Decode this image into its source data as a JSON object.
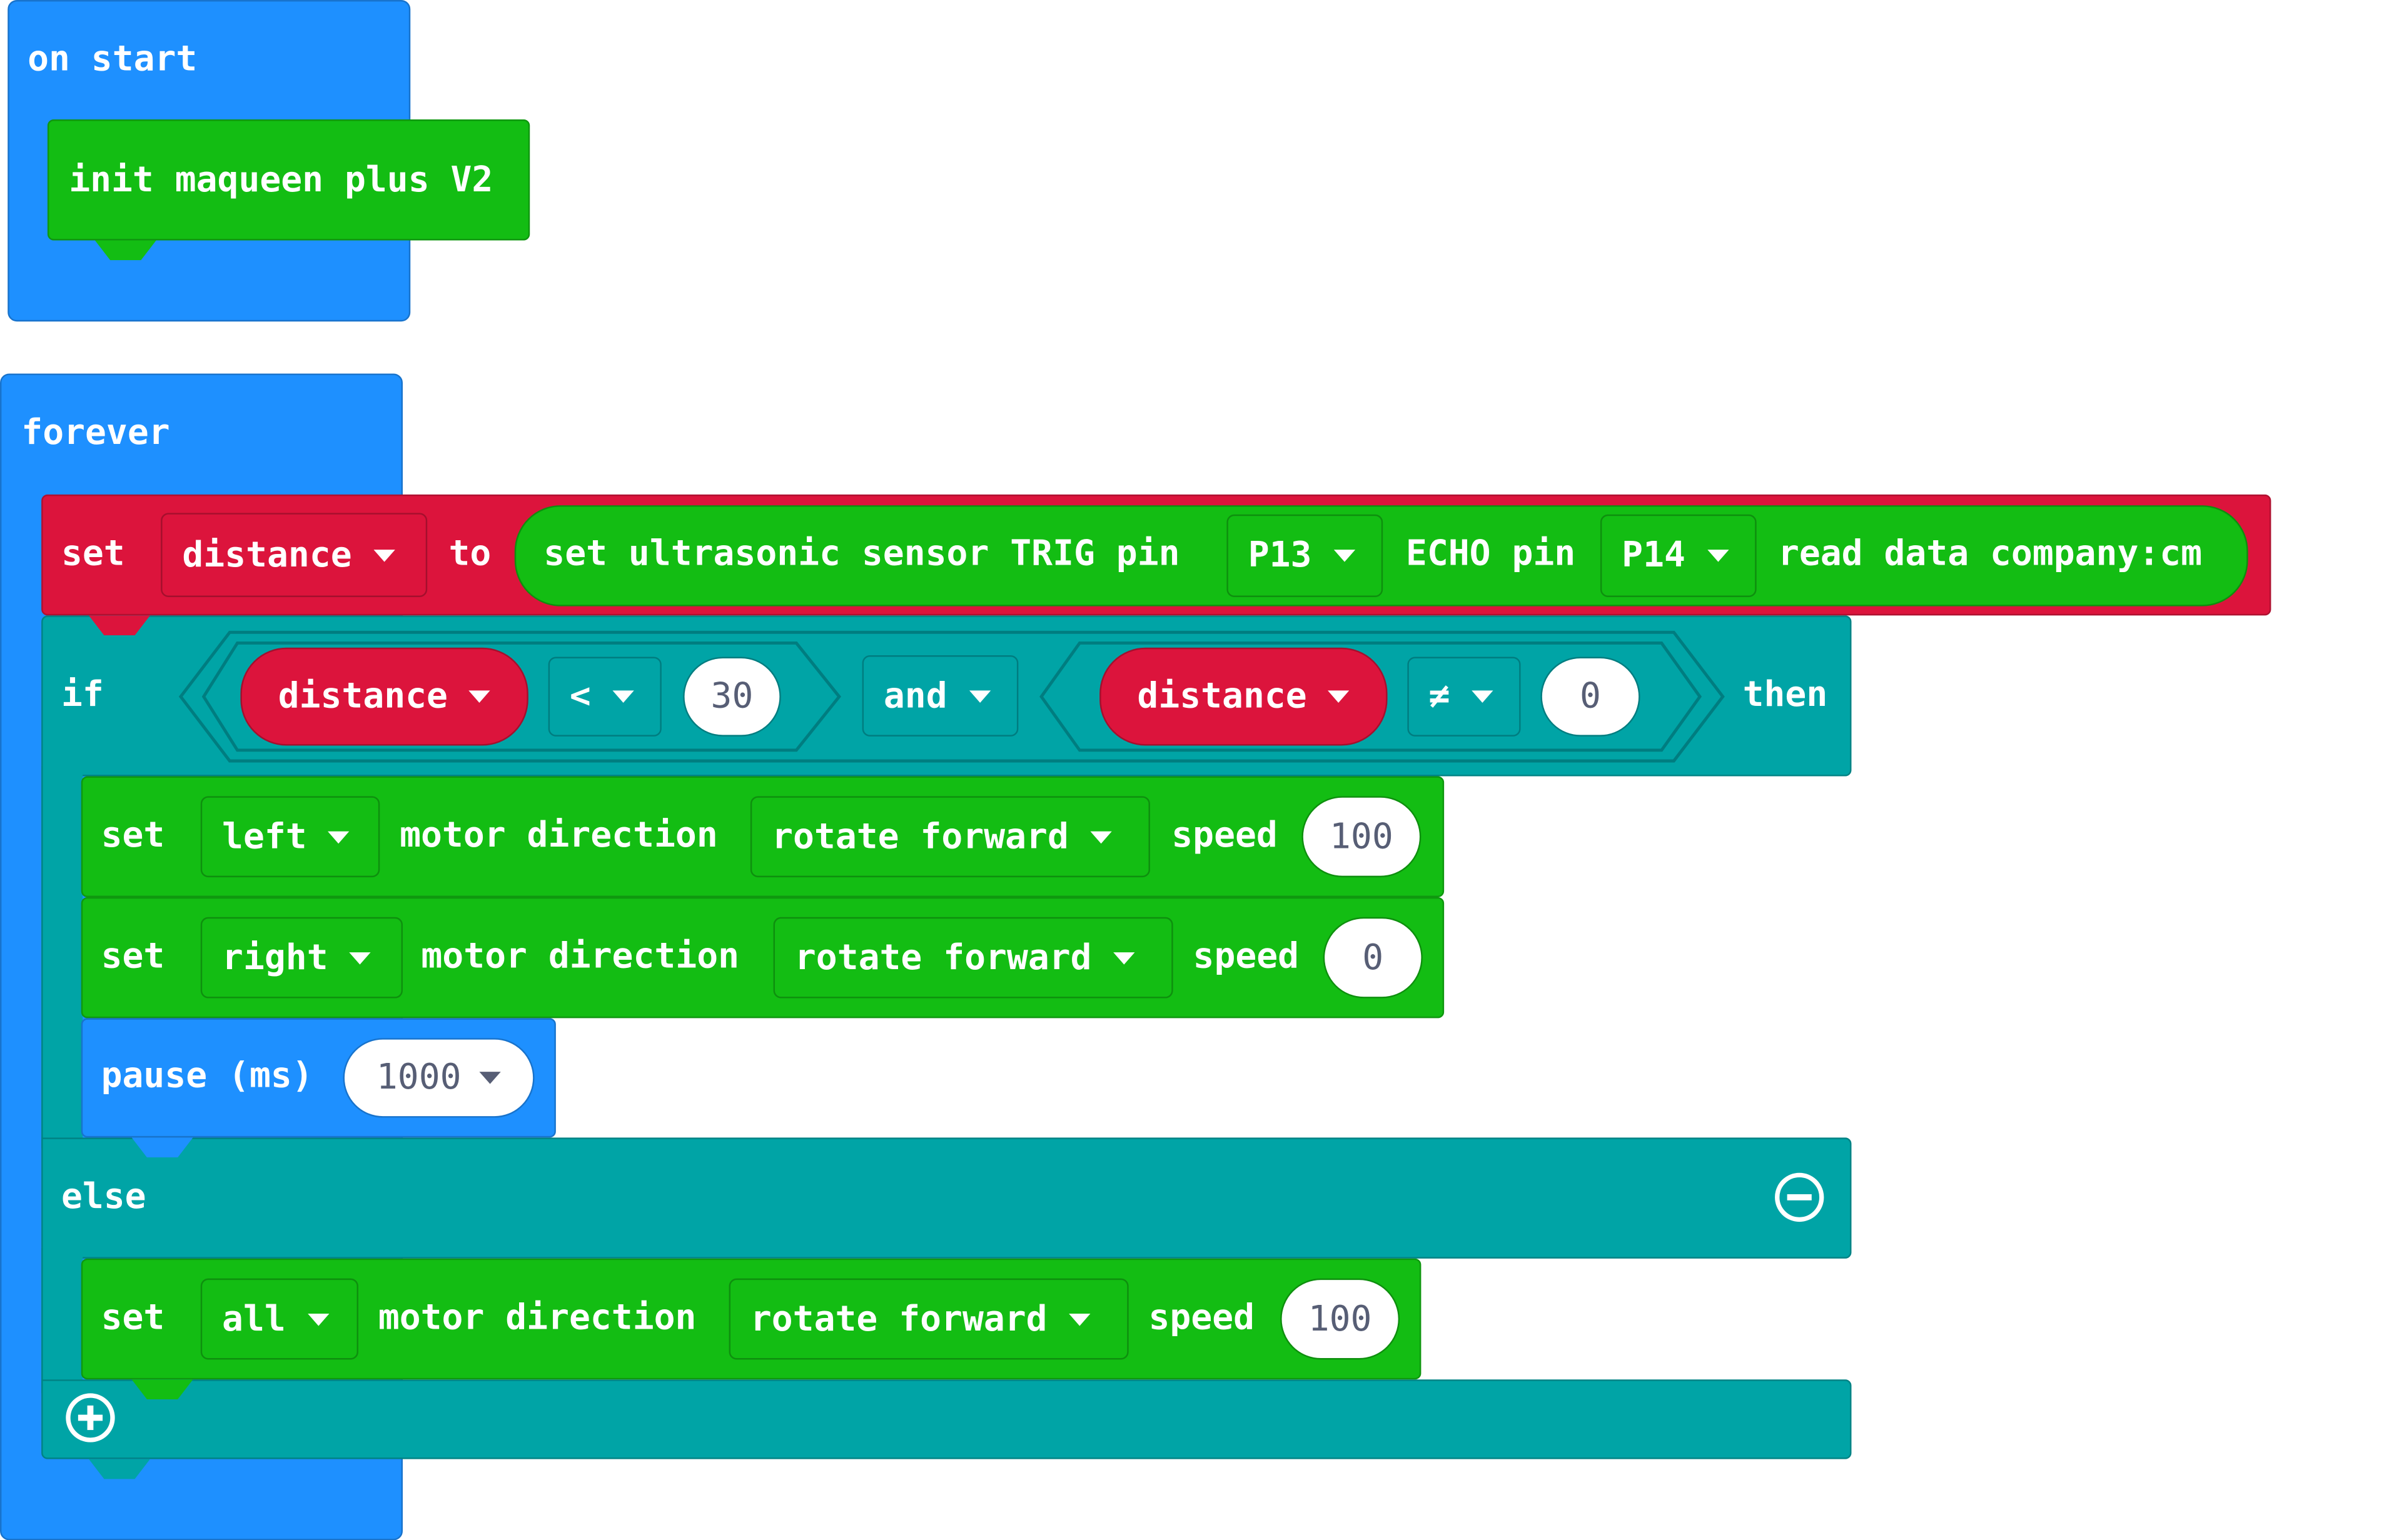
{
  "colors": {
    "events": "#1e90ff",
    "variables": "#dc143c",
    "maqueen": "#13bd13",
    "logic": "#00a4a6"
  },
  "on_start": {
    "label": "on start",
    "init_block": "init maqueen plus V2"
  },
  "forever": {
    "label": "forever",
    "set_var": {
      "set": "set",
      "variable": "distance",
      "to": "to",
      "sensor": {
        "prefix": "set ultrasonic sensor TRIG pin",
        "trig": "P13",
        "echo_label": "ECHO pin",
        "echo": "P14",
        "suffix": "read data company:cm"
      }
    },
    "if_block": {
      "if": "if",
      "then": "then",
      "else": "else",
      "cond_left": {
        "variable": "distance",
        "op": "<",
        "value": "30"
      },
      "logic_op": "and",
      "cond_right": {
        "variable": "distance",
        "op": "≠",
        "value": "0"
      },
      "then_blocks": [
        {
          "set": "set",
          "motor": "left",
          "label": "motor direction",
          "direction": "rotate forward",
          "speed_label": "speed",
          "speed": "100"
        },
        {
          "set": "set",
          "motor": "right",
          "label": "motor direction",
          "direction": "rotate forward",
          "speed_label": "speed",
          "speed": "0"
        }
      ],
      "pause": {
        "label": "pause (ms)",
        "value": "1000"
      },
      "else_blocks": [
        {
          "set": "set",
          "motor": "all",
          "label": "motor direction",
          "direction": "rotate forward",
          "speed_label": "speed",
          "speed": "100"
        }
      ]
    }
  }
}
